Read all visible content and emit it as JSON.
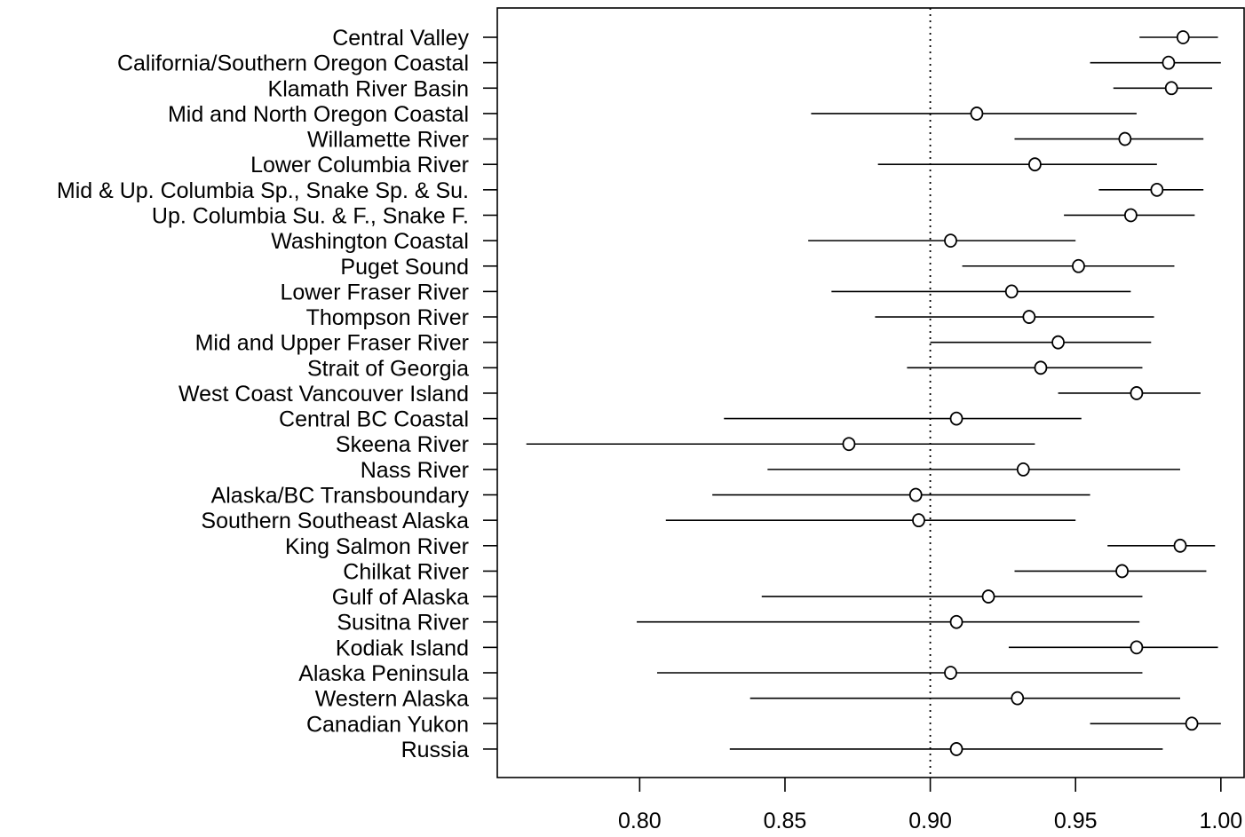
{
  "chart_data": {
    "type": "scatter",
    "title": "",
    "xlabel": "",
    "ylabel": "",
    "xlim": [
      0.751,
      1.008
    ],
    "xticks": [
      0.8,
      0.85,
      0.9,
      0.95,
      1.0
    ],
    "xtick_labels": [
      "0.80",
      "0.85",
      "0.90",
      "0.95",
      "1.00"
    ],
    "reference_line": 0.9,
    "grid": false,
    "marker": "open-circle",
    "error_bars": "horizontal",
    "categories": [
      "Central Valley",
      "California/Southern Oregon Coastal",
      "Klamath River Basin",
      "Mid and North Oregon Coastal",
      "Willamette River",
      "Lower Columbia River",
      "Mid & Up. Columbia Sp., Snake Sp. & Su.",
      "Up. Columbia Su. & F., Snake F.",
      "Washington Coastal",
      "Puget Sound",
      "Lower Fraser River",
      "Thompson River",
      "Mid and Upper Fraser River",
      "Strait of Georgia",
      "West Coast Vancouver Island",
      "Central BC Coastal",
      "Skeena River",
      "Nass River",
      "Alaska/BC Transboundary",
      "Southern Southeast Alaska",
      "King Salmon River",
      "Chilkat River",
      "Gulf of Alaska",
      "Susitna River",
      "Kodiak Island",
      "Alaska Peninsula",
      "Western Alaska",
      "Canadian Yukon",
      "Russia"
    ],
    "values": [
      0.987,
      0.982,
      0.983,
      0.916,
      0.967,
      0.936,
      0.978,
      0.969,
      0.907,
      0.951,
      0.928,
      0.934,
      0.944,
      0.938,
      0.971,
      0.909,
      0.872,
      0.932,
      0.895,
      0.896,
      0.986,
      0.966,
      0.92,
      0.909,
      0.971,
      0.907,
      0.93,
      0.99,
      0.909
    ],
    "lower": [
      0.972,
      0.955,
      0.963,
      0.859,
      0.929,
      0.882,
      0.958,
      0.946,
      0.858,
      0.911,
      0.866,
      0.881,
      0.9,
      0.892,
      0.944,
      0.829,
      0.761,
      0.844,
      0.825,
      0.809,
      0.961,
      0.929,
      0.842,
      0.799,
      0.927,
      0.806,
      0.838,
      0.955,
      0.831
    ],
    "upper": [
      0.999,
      1.0,
      0.997,
      0.971,
      0.994,
      0.978,
      0.994,
      0.991,
      0.95,
      0.984,
      0.969,
      0.977,
      0.976,
      0.973,
      0.993,
      0.952,
      0.936,
      0.986,
      0.955,
      0.95,
      0.998,
      0.995,
      0.973,
      0.972,
      0.999,
      0.973,
      0.986,
      1.0,
      0.98
    ]
  }
}
